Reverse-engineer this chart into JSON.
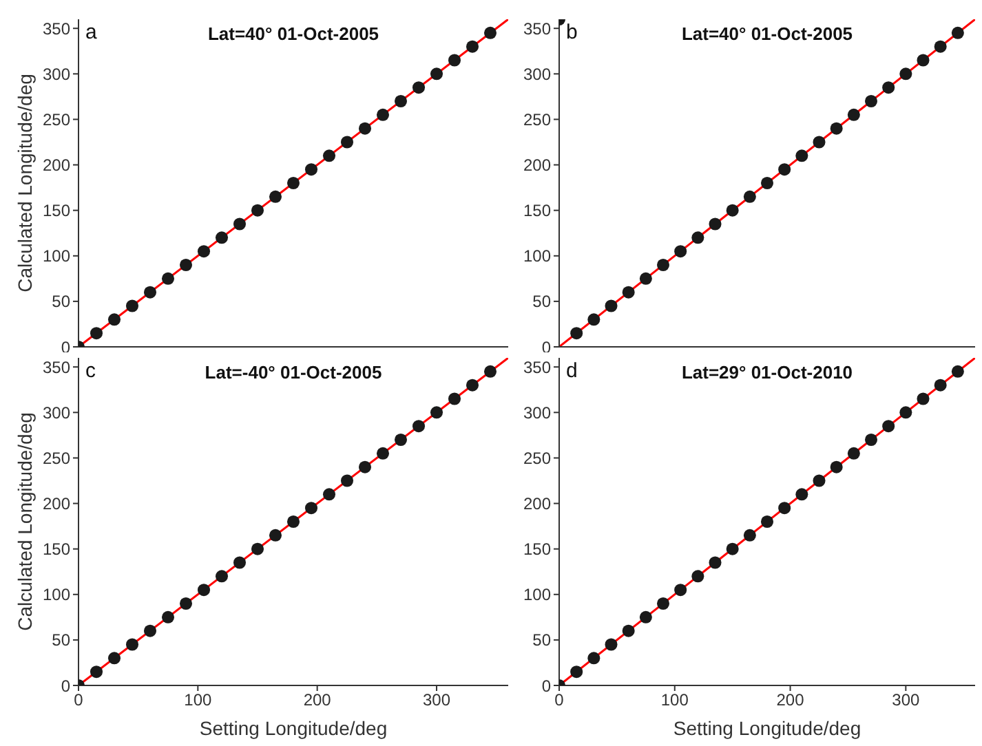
{
  "chart_data": [
    {
      "type": "scatter",
      "title": "Lat=40° 01-Oct-2005",
      "annotations": [
        "a"
      ],
      "ylabel": "Calculated Longitude/deg",
      "xlim": [
        0,
        360
      ],
      "ylim": [
        0,
        360
      ],
      "xticks": [
        0,
        100,
        200,
        300
      ],
      "yticks": [
        0,
        50,
        100,
        150,
        200,
        250,
        300,
        350
      ],
      "tick_labels": "y",
      "marker": "circle",
      "series": [
        {
          "type": "scatter",
          "color": "#1a1a1a",
          "x": [
            0,
            15,
            30,
            45,
            60,
            75,
            90,
            105,
            120,
            135,
            150,
            165,
            180,
            195,
            210,
            225,
            240,
            255,
            270,
            285,
            300,
            315,
            330,
            345
          ],
          "values": [
            0,
            15,
            30,
            45,
            60,
            75,
            90,
            105,
            120,
            135,
            150,
            165,
            180,
            195,
            210,
            225,
            240,
            255,
            270,
            285,
            300,
            315,
            330,
            345
          ]
        },
        {
          "type": "line",
          "color": "#ff0000",
          "marker": "none",
          "x": [
            0,
            360
          ],
          "values": [
            0,
            360
          ]
        }
      ]
    },
    {
      "type": "scatter",
      "title": "Lat=40° 01-Oct-2005",
      "annotations": [
        "b"
      ],
      "xlim": [
        0,
        360
      ],
      "ylim": [
        0,
        360
      ],
      "xticks": [
        0,
        100,
        200,
        300
      ],
      "yticks": [
        0,
        50,
        100,
        150,
        200,
        250,
        300,
        350
      ],
      "tick_labels": "y",
      "marker": "circle",
      "series": [
        {
          "type": "scatter",
          "color": "#1a1a1a",
          "x": [
            0,
            15,
            30,
            45,
            60,
            75,
            90,
            105,
            120,
            135,
            150,
            165,
            180,
            195,
            210,
            225,
            240,
            255,
            270,
            285,
            300,
            315,
            330,
            345
          ],
          "values": [
            360,
            15,
            30,
            45,
            60,
            75,
            90,
            105,
            120,
            135,
            150,
            165,
            180,
            195,
            210,
            225,
            240,
            255,
            270,
            285,
            300,
            315,
            330,
            345
          ]
        },
        {
          "type": "line",
          "color": "#ff0000",
          "marker": "none",
          "x": [
            0,
            360
          ],
          "values": [
            0,
            360
          ]
        }
      ]
    },
    {
      "type": "scatter",
      "title": "Lat=-40° 01-Oct-2005",
      "annotations": [
        "c"
      ],
      "xlabel": "Setting Longitude/deg",
      "ylabel": "Calculated Longitude/deg",
      "xlim": [
        0,
        360
      ],
      "ylim": [
        0,
        360
      ],
      "xticks": [
        0,
        100,
        200,
        300
      ],
      "yticks": [
        0,
        50,
        100,
        150,
        200,
        250,
        300,
        350
      ],
      "marker": "circle",
      "series": [
        {
          "type": "scatter",
          "color": "#1a1a1a",
          "x": [
            0,
            15,
            30,
            45,
            60,
            75,
            90,
            105,
            120,
            135,
            150,
            165,
            180,
            195,
            210,
            225,
            240,
            255,
            270,
            285,
            300,
            315,
            330,
            345
          ],
          "values": [
            0,
            15,
            30,
            45,
            60,
            75,
            90,
            105,
            120,
            135,
            150,
            165,
            180,
            195,
            210,
            225,
            240,
            255,
            270,
            285,
            300,
            315,
            330,
            345
          ]
        },
        {
          "type": "line",
          "color": "#ff0000",
          "marker": "none",
          "x": [
            0,
            360
          ],
          "values": [
            0,
            360
          ]
        }
      ]
    },
    {
      "type": "scatter",
      "title": "Lat=29° 01-Oct-2010",
      "annotations": [
        "d"
      ],
      "xlabel": "Setting Longitude/deg",
      "xlim": [
        0,
        360
      ],
      "ylim": [
        0,
        360
      ],
      "xticks": [
        0,
        100,
        200,
        300
      ],
      "yticks": [
        0,
        50,
        100,
        150,
        200,
        250,
        300,
        350
      ],
      "marker": "circle",
      "series": [
        {
          "type": "scatter",
          "color": "#1a1a1a",
          "x": [
            0,
            15,
            30,
            45,
            60,
            75,
            90,
            105,
            120,
            135,
            150,
            165,
            180,
            195,
            210,
            225,
            240,
            255,
            270,
            285,
            300,
            315,
            330,
            345
          ],
          "values": [
            0,
            15,
            30,
            45,
            60,
            75,
            90,
            105,
            120,
            135,
            150,
            165,
            180,
            195,
            210,
            225,
            240,
            255,
            270,
            285,
            300,
            315,
            330,
            345
          ]
        },
        {
          "type": "line",
          "color": "#ff0000",
          "marker": "none",
          "x": [
            0,
            360
          ],
          "values": [
            0,
            360
          ]
        }
      ]
    }
  ]
}
